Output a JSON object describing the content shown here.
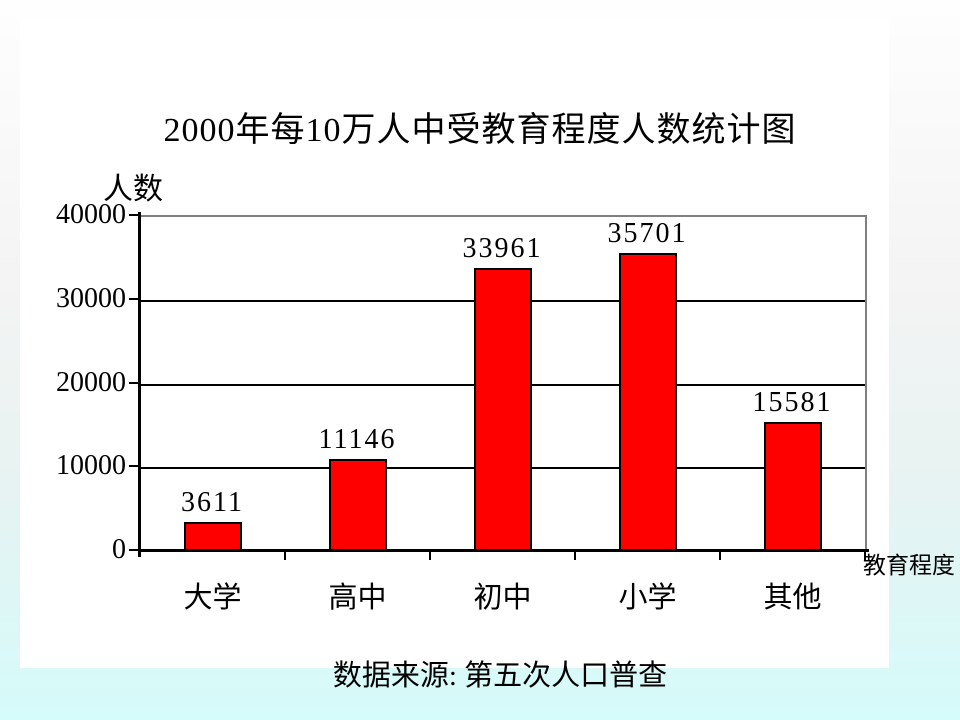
{
  "slide": {
    "source_note": "数据来源: 第五次人口普查"
  },
  "chart_data": {
    "type": "bar",
    "title": "2000年每10万人中受教育程度人数统计图",
    "categories": [
      "大学",
      "高中",
      "初中",
      "小学",
      "其他"
    ],
    "values": [
      3611,
      11146,
      33961,
      35701,
      15581
    ],
    "data_labels": [
      "3611",
      "11146",
      "33961",
      "35701",
      "15581"
    ],
    "ylabel": "人数",
    "xlabel": "教育程度",
    "ylim": [
      0,
      40000
    ],
    "yticks": [
      0,
      10000,
      20000,
      30000,
      40000
    ],
    "ytick_labels": [
      "0",
      "10000",
      "20000",
      "30000",
      "40000"
    ],
    "grid": true,
    "legend": "none",
    "bar_color": "#ff0000",
    "bar_border_color": "#000000",
    "gridline_color": "#000000",
    "plot_border_color": "#808080"
  }
}
